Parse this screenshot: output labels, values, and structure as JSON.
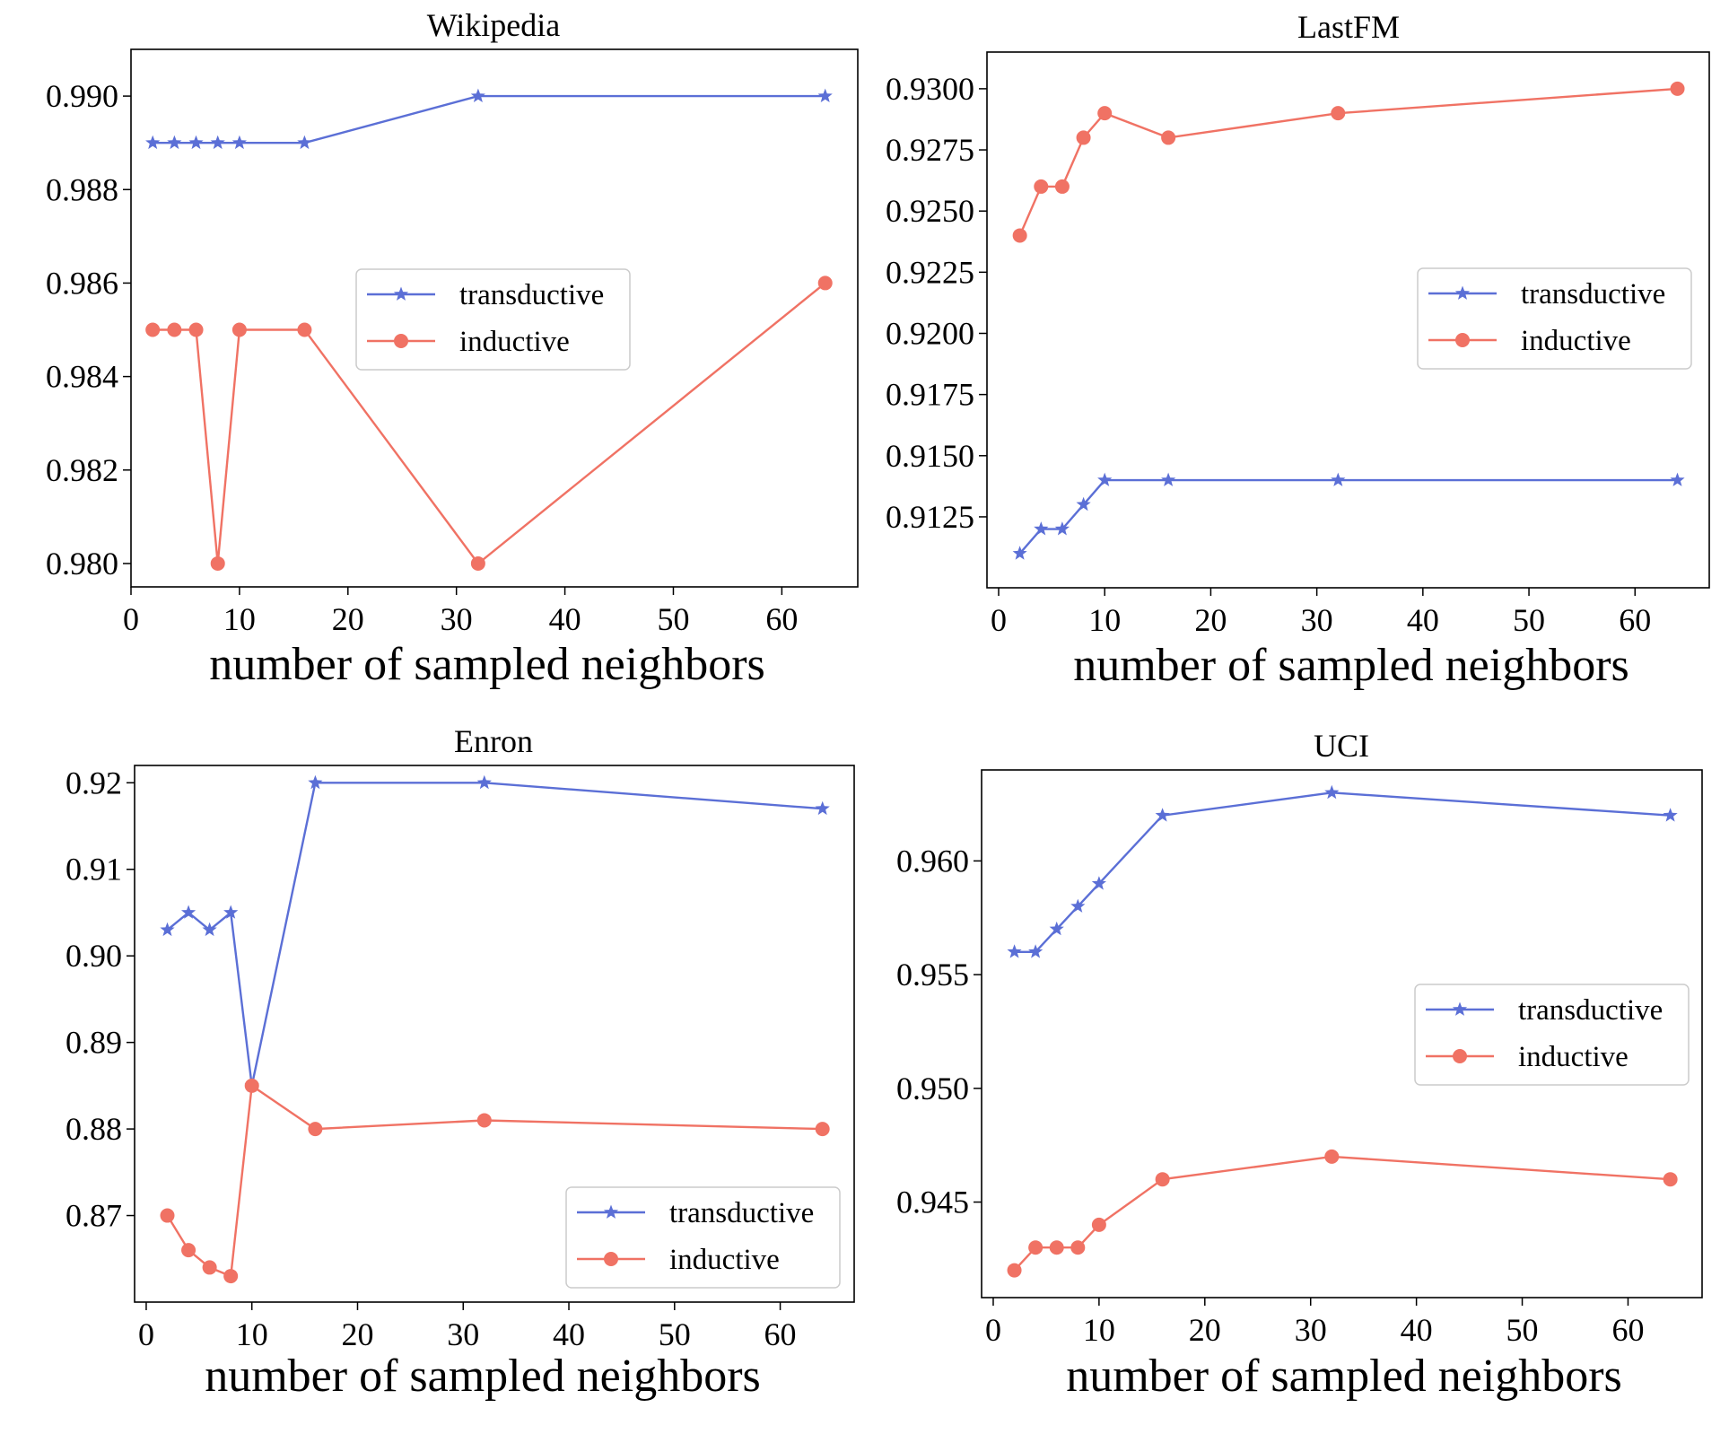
{
  "chart_data": [
    {
      "type": "line",
      "title": "Wikipedia",
      "xlabel": "number of sampled neighbors",
      "ylabel": "",
      "xlim": [
        0,
        67
      ],
      "ylim": [
        0.9795,
        0.991
      ],
      "xticks": [
        0,
        10,
        20,
        30,
        40,
        50,
        60
      ],
      "yticks": [
        0.98,
        0.982,
        0.984,
        0.986,
        0.988,
        0.99
      ],
      "ytick_labels": [
        "0.980",
        "0.982",
        "0.984",
        "0.986",
        "0.988",
        "0.990"
      ],
      "x": [
        2,
        4,
        6,
        8,
        10,
        16,
        32,
        64
      ],
      "series": [
        {
          "name": "transductive",
          "marker": "star",
          "color": "#5b6fd6",
          "values": [
            0.989,
            0.989,
            0.989,
            0.989,
            0.989,
            0.989,
            0.99,
            0.99
          ]
        },
        {
          "name": "inductive",
          "marker": "circle",
          "color": "#f07264",
          "values": [
            0.985,
            0.985,
            0.985,
            0.98,
            0.985,
            0.985,
            0.98,
            0.986
          ]
        }
      ],
      "legend": "center-right"
    },
    {
      "type": "line",
      "title": "LastFM",
      "xlabel": "number of sampled neighbors",
      "ylabel": "",
      "xlim": [
        -1.1,
        67
      ],
      "ylim": [
        0.9096,
        0.9315
      ],
      "xticks": [
        0,
        10,
        20,
        30,
        40,
        50,
        60
      ],
      "yticks": [
        0.9125,
        0.915,
        0.9175,
        0.92,
        0.9225,
        0.925,
        0.9275,
        0.93
      ],
      "ytick_labels": [
        "0.9125",
        "0.9150",
        "0.9175",
        "0.9200",
        "0.9225",
        "0.9250",
        "0.9275",
        "0.9300"
      ],
      "x": [
        2,
        4,
        6,
        8,
        10,
        16,
        32,
        64
      ],
      "series": [
        {
          "name": "transductive",
          "marker": "star",
          "color": "#5b6fd6",
          "values": [
            0.911,
            0.912,
            0.912,
            0.913,
            0.914,
            0.914,
            0.914,
            0.914
          ]
        },
        {
          "name": "inductive",
          "marker": "circle",
          "color": "#f07264",
          "values": [
            0.924,
            0.926,
            0.926,
            0.928,
            0.929,
            0.928,
            0.929,
            0.93
          ]
        }
      ],
      "legend": "center-right"
    },
    {
      "type": "line",
      "title": "Enron",
      "xlabel": "number of sampled neighbors",
      "ylabel": "",
      "xlim": [
        -1.1,
        67
      ],
      "ylim": [
        0.86,
        0.922
      ],
      "xticks": [
        0,
        10,
        20,
        30,
        40,
        50,
        60
      ],
      "yticks": [
        0.87,
        0.88,
        0.89,
        0.9,
        0.91,
        0.92
      ],
      "ytick_labels": [
        "0.87",
        "0.88",
        "0.89",
        "0.90",
        "0.91",
        "0.92"
      ],
      "x": [
        2,
        4,
        6,
        8,
        10,
        16,
        32,
        64
      ],
      "series": [
        {
          "name": "transductive",
          "marker": "star",
          "color": "#5b6fd6",
          "values": [
            0.903,
            0.905,
            0.903,
            0.905,
            0.885,
            0.92,
            0.92,
            0.917
          ]
        },
        {
          "name": "inductive",
          "marker": "circle",
          "color": "#f07264",
          "values": [
            0.87,
            0.866,
            0.864,
            0.863,
            0.885,
            0.88,
            0.881,
            0.88
          ]
        }
      ],
      "legend": "lower-right"
    },
    {
      "type": "line",
      "title": "UCI",
      "xlabel": "number of sampled neighbors",
      "ylabel": "",
      "xlim": [
        -1.1,
        67
      ],
      "ylim": [
        0.9408,
        0.964
      ],
      "xticks": [
        0,
        10,
        20,
        30,
        40,
        50,
        60
      ],
      "yticks": [
        0.945,
        0.95,
        0.955,
        0.96
      ],
      "ytick_labels": [
        "0.945",
        "0.950",
        "0.955",
        "0.960"
      ],
      "x": [
        2,
        4,
        6,
        8,
        10,
        16,
        32,
        64
      ],
      "series": [
        {
          "name": "transductive",
          "marker": "star",
          "color": "#5b6fd6",
          "values": [
            0.956,
            0.956,
            0.957,
            0.958,
            0.959,
            0.962,
            0.963,
            0.962
          ]
        },
        {
          "name": "inductive",
          "marker": "circle",
          "color": "#f07264",
          "values": [
            0.942,
            0.943,
            0.943,
            0.943,
            0.944,
            0.946,
            0.947,
            0.946
          ]
        }
      ],
      "legend": "center-right"
    }
  ]
}
